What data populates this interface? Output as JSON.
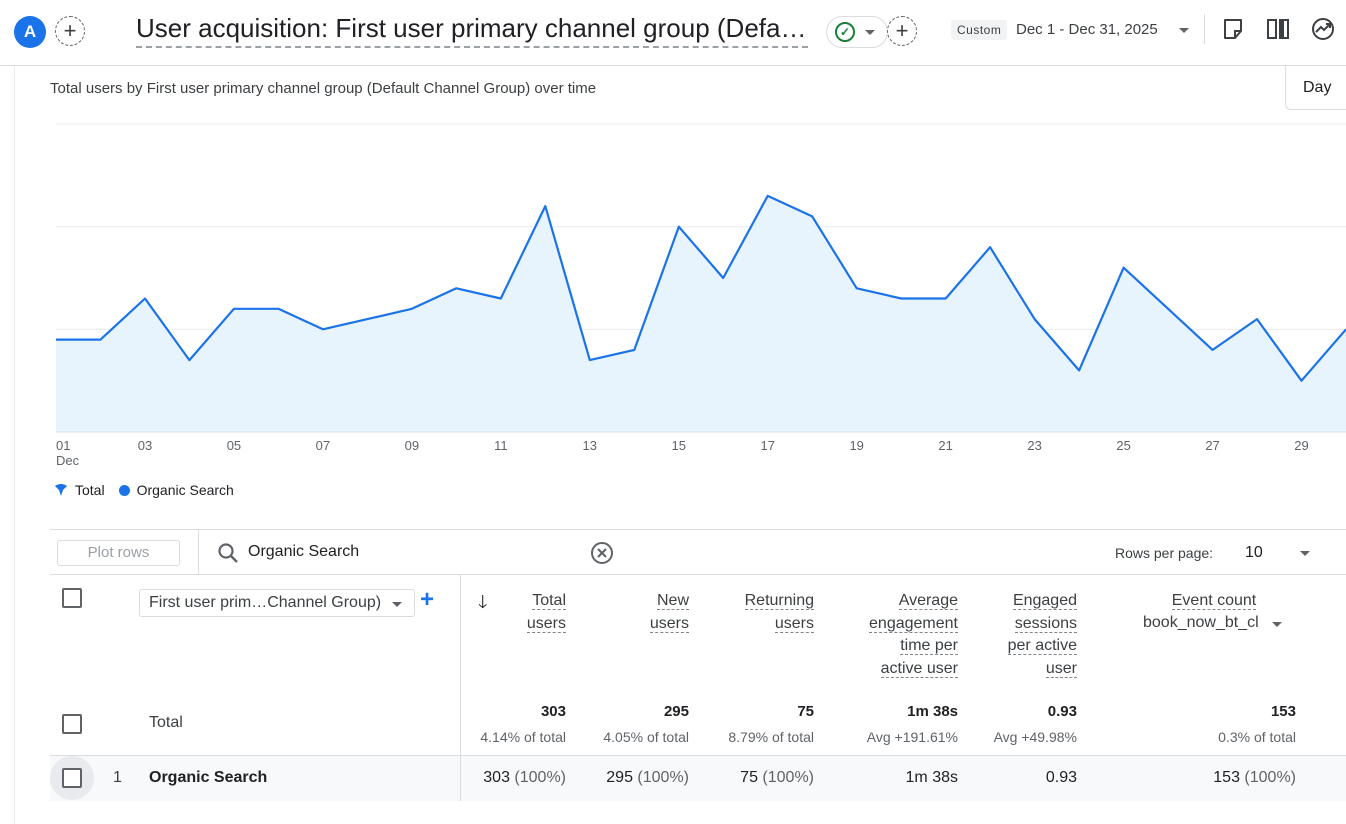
{
  "header": {
    "avatar_letter": "A",
    "title": "User acquisition: First user primary channel group (Default Channel Group)",
    "date_badge": "Custom",
    "date_range": "Dec 1 - Dec 31, 2025",
    "icons": [
      "add-comparison-icon",
      "status-check-icon",
      "add-icon",
      "annotation-icon",
      "compare-icon",
      "insights-icon"
    ]
  },
  "chart": {
    "title": "Total users by First user primary channel group (Default Channel Group) over time",
    "granularity": "Day",
    "legend": [
      {
        "label": "Total",
        "color": "#1a73e8"
      },
      {
        "label": "Organic Search",
        "color": "#1a73e8"
      }
    ]
  },
  "chart_data": {
    "type": "area",
    "x": [
      "01",
      "02",
      "03",
      "04",
      "05",
      "06",
      "07",
      "08",
      "09",
      "10",
      "11",
      "12",
      "13",
      "14",
      "15",
      "16",
      "17",
      "18",
      "19",
      "20",
      "21",
      "22",
      "23",
      "24",
      "25",
      "26",
      "27",
      "28",
      "29",
      "30"
    ],
    "x_tick_labels": [
      "01",
      "03",
      "05",
      "07",
      "09",
      "11",
      "13",
      "15",
      "17",
      "19",
      "21",
      "23",
      "25",
      "27",
      "29"
    ],
    "x_sub_label": "Dec",
    "series": [
      {
        "name": "Organic Search",
        "values": [
          9,
          9,
          13,
          7,
          12,
          12,
          10,
          11,
          12,
          14,
          13,
          22,
          7,
          8,
          20,
          15,
          23,
          21,
          14,
          13,
          13,
          18,
          11,
          6,
          16,
          12,
          8,
          11,
          5,
          10
        ]
      }
    ],
    "ylim": [
      0,
      30
    ],
    "grid": true,
    "legend_position": "bottom-left",
    "color": "#1a73e8",
    "fill_color": "#e8f4fd"
  },
  "table": {
    "plot_rows_label": "Plot rows",
    "search_value": "Organic Search",
    "rows_per_page_label": "Rows per page:",
    "rows_per_page_value": "10",
    "dimension_label": "First user prim…Channel Group)",
    "columns": [
      {
        "label": [
          "Total",
          "users"
        ]
      },
      {
        "label": [
          "New",
          "users"
        ]
      },
      {
        "label": [
          "Returning",
          "users"
        ]
      },
      {
        "label": [
          "Average",
          "engagement",
          "time per",
          "active user"
        ]
      },
      {
        "label": [
          "Engaged",
          "sessions",
          "per active",
          "user"
        ]
      },
      {
        "label": [
          "Event count"
        ],
        "sub": "book_now_bt_cl"
      }
    ],
    "total": {
      "label": "Total",
      "values": [
        "303",
        "295",
        "75",
        "1m 38s",
        "0.93",
        "153"
      ],
      "subs": [
        "4.14% of total",
        "4.05% of total",
        "8.79% of total",
        "Avg +191.61%",
        "Avg +49.98%",
        "0.3% of total"
      ]
    },
    "rows": [
      {
        "index": "1",
        "name": "Organic Search",
        "values": [
          "303",
          "295",
          "75",
          "1m 38s",
          "0.93",
          "153"
        ],
        "pcts": [
          "(100%)",
          "(100%)",
          "(100%)",
          "",
          "",
          "(100%)"
        ]
      }
    ]
  }
}
